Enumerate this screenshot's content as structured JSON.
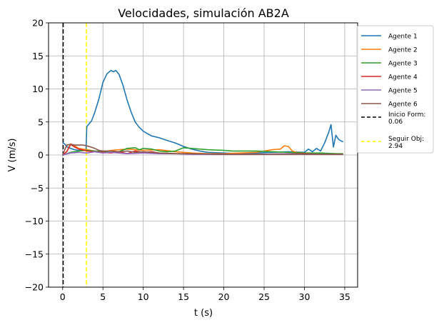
{
  "chart_data": {
    "type": "line",
    "title": "Velocidades, simulación AB2A",
    "xlabel": "t (s)",
    "ylabel": "V (m/s)",
    "xlim": [
      -1.75,
      36.6
    ],
    "ylim": [
      -20,
      20
    ],
    "xticks": [
      0,
      5,
      10,
      15,
      20,
      25,
      30,
      35
    ],
    "yticks": [
      -20,
      -15,
      -10,
      -5,
      0,
      5,
      10,
      15,
      20
    ],
    "xtick_labels": [
      "0",
      "5",
      "10",
      "15",
      "20",
      "25",
      "30",
      "35"
    ],
    "ytick_labels": [
      "−20",
      "−15",
      "−10",
      "−5",
      "0",
      "5",
      "10",
      "15",
      "20"
    ],
    "grid": true,
    "legend_position": "outside-top-right",
    "series": [
      {
        "name": "Agente 1",
        "color": "#1f77b4",
        "x": [
          0.0,
          0.3,
          0.6,
          1.0,
          1.5,
          2.0,
          2.5,
          2.9,
          3.0,
          3.2,
          3.6,
          4.0,
          4.5,
          5.0,
          5.5,
          6.0,
          6.3,
          6.6,
          7.0,
          7.5,
          8.0,
          8.5,
          9.0,
          9.5,
          10.0,
          11.0,
          12.0,
          13.0,
          14.0,
          15.0,
          16.0,
          17.0,
          18.0,
          20.0,
          22.0,
          24.0,
          26.0,
          28.0,
          30.0,
          30.5,
          31.0,
          31.5,
          32.0,
          32.5,
          33.0,
          33.3,
          33.6,
          33.9,
          34.1,
          34.3,
          34.6,
          34.8
        ],
        "y": [
          1.9,
          1.6,
          1.2,
          1.0,
          0.8,
          0.7,
          0.7,
          0.8,
          4.3,
          4.6,
          5.2,
          6.5,
          8.5,
          11.0,
          12.3,
          12.8,
          12.6,
          12.8,
          12.2,
          10.5,
          8.3,
          6.5,
          5.0,
          4.2,
          3.6,
          2.9,
          2.6,
          2.2,
          1.8,
          1.3,
          0.9,
          0.6,
          0.4,
          0.3,
          0.2,
          0.3,
          0.4,
          0.5,
          0.4,
          0.9,
          0.5,
          1.0,
          0.6,
          1.8,
          3.4,
          4.6,
          1.2,
          3.0,
          2.6,
          2.3,
          2.1,
          2.0
        ]
      },
      {
        "name": "Agente 2",
        "color": "#ff7f0e",
        "x": [
          0.0,
          0.5,
          1.0,
          1.5,
          2.0,
          3.0,
          4.0,
          5.0,
          6.0,
          8.0,
          10.0,
          12.0,
          14.0,
          16.0,
          18.0,
          20.0,
          22.0,
          24.0,
          25.0,
          26.0,
          27.0,
          27.5,
          28.0,
          28.5,
          29.0,
          30.0,
          32.0,
          34.0,
          34.8
        ],
        "y": [
          0.0,
          0.5,
          1.7,
          1.4,
          1.0,
          0.8,
          0.6,
          0.5,
          0.7,
          0.9,
          0.7,
          0.8,
          0.5,
          0.3,
          0.2,
          0.2,
          0.3,
          0.4,
          0.6,
          0.8,
          0.9,
          1.4,
          1.3,
          0.6,
          0.4,
          0.3,
          0.2,
          0.2,
          0.2
        ]
      },
      {
        "name": "Agente 3",
        "color": "#2ca02c",
        "x": [
          0.0,
          0.5,
          1.0,
          2.0,
          3.0,
          4.0,
          5.0,
          6.0,
          7.0,
          8.0,
          9.0,
          9.5,
          10.0,
          11.0,
          12.0,
          13.0,
          14.0,
          15.0,
          16.0,
          18.0,
          20.0,
          21.0,
          22.0,
          24.0,
          26.0,
          28.0,
          30.0,
          32.0,
          34.0,
          34.8
        ],
        "y": [
          0.0,
          0.2,
          0.4,
          0.6,
          0.7,
          0.6,
          0.5,
          0.4,
          0.5,
          1.0,
          1.1,
          0.8,
          1.0,
          0.9,
          0.6,
          0.5,
          0.6,
          1.1,
          1.0,
          0.8,
          0.7,
          0.6,
          0.6,
          0.6,
          0.5,
          0.4,
          0.3,
          0.3,
          0.2,
          0.2
        ]
      },
      {
        "name": "Agente 4",
        "color": "#d62728",
        "x": [
          0.0,
          0.5,
          1.0,
          1.5,
          2.0,
          3.0,
          4.0,
          5.0,
          6.0,
          7.0,
          8.0,
          9.0,
          10.0,
          11.0,
          12.0,
          14.0,
          16.0,
          20.0,
          24.0,
          28.0,
          30.0,
          32.0,
          34.0,
          34.8
        ],
        "y": [
          0.0,
          0.5,
          1.6,
          1.2,
          0.9,
          0.6,
          0.5,
          0.4,
          0.3,
          0.5,
          0.2,
          0.6,
          0.4,
          0.5,
          0.3,
          0.2,
          0.2,
          0.1,
          0.1,
          0.2,
          0.2,
          0.1,
          0.1,
          0.1
        ]
      },
      {
        "name": "Agente 5",
        "color": "#9467bd",
        "x": [
          0.0,
          1.0,
          2.0,
          3.0,
          4.0,
          5.0,
          6.0,
          8.0,
          10.0,
          12.0,
          14.0,
          16.0,
          20.0,
          24.0,
          28.0,
          30.0,
          32.0,
          34.0,
          34.8
        ],
        "y": [
          0.0,
          0.3,
          0.4,
          0.3,
          0.5,
          0.3,
          0.4,
          0.2,
          0.3,
          0.2,
          0.2,
          0.1,
          0.1,
          0.1,
          0.2,
          0.1,
          0.1,
          0.1,
          0.1
        ]
      },
      {
        "name": "Agente 6",
        "color": "#8c564b",
        "x": [
          0.0,
          0.5,
          1.0,
          1.5,
          2.0,
          2.5,
          3.0,
          3.5,
          4.0,
          4.5,
          5.0,
          6.0,
          7.0,
          8.0,
          9.0,
          10.0,
          12.0,
          14.0,
          16.0,
          20.0,
          24.0,
          28.0,
          30.0,
          32.0,
          34.0,
          34.8
        ],
        "y": [
          0.0,
          1.5,
          1.6,
          1.5,
          1.5,
          1.5,
          1.4,
          1.2,
          1.0,
          0.7,
          0.6,
          0.6,
          0.5,
          0.6,
          0.4,
          0.5,
          0.3,
          0.2,
          0.2,
          0.1,
          0.1,
          0.1,
          0.1,
          0.1,
          0.1,
          0.1
        ]
      }
    ],
    "vlines": [
      {
        "name": "Inicio Form:",
        "value_label": "0.06",
        "x": 0.06,
        "color": "#000000",
        "style": "dashed"
      },
      {
        "name": "Seguir Obj:",
        "value_label": "2.94",
        "x": 2.94,
        "color": "#ffff00",
        "style": "dashed"
      }
    ]
  }
}
